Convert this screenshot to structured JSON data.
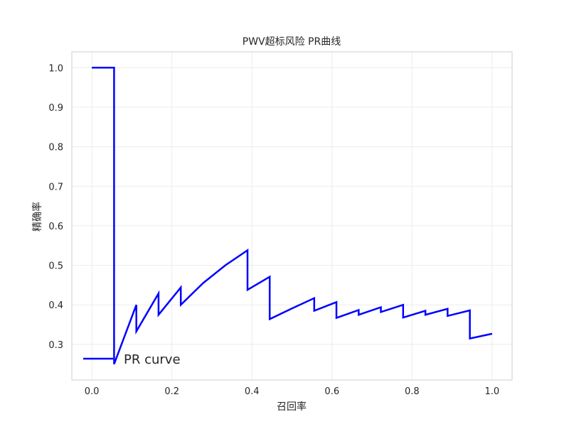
{
  "chart_data": {
    "type": "line",
    "title": "PWV超标风险 PR曲线",
    "xlabel": "召回率",
    "ylabel": "精确率",
    "xlim": [
      -0.05,
      1.05
    ],
    "ylim": [
      0.21,
      1.04
    ],
    "grid": true,
    "legend_position": "lower-left",
    "x_ticks": [
      0.0,
      0.2,
      0.4,
      0.6,
      0.8,
      1.0
    ],
    "x_tick_labels": [
      "0.0",
      "0.2",
      "0.4",
      "0.6",
      "0.8",
      "1.0"
    ],
    "y_ticks": [
      0.3,
      0.4,
      0.5,
      0.6,
      0.7,
      0.8,
      0.9,
      1.0
    ],
    "y_tick_labels": [
      "0.3",
      "0.4",
      "0.5",
      "0.6",
      "0.7",
      "0.8",
      "0.9",
      "1.0"
    ],
    "series": [
      {
        "name": "PR curve",
        "color": "#0000ff",
        "x": [
          0.0,
          0.0556,
          0.0556,
          0.1111,
          0.1111,
          0.1667,
          0.1667,
          0.2222,
          0.2222,
          0.2778,
          0.3333,
          0.3889,
          0.3889,
          0.4444,
          0.4444,
          0.5,
          0.5556,
          0.5556,
          0.6111,
          0.6111,
          0.6667,
          0.6667,
          0.7222,
          0.7222,
          0.7778,
          0.7778,
          0.8333,
          0.8333,
          0.8889,
          0.8889,
          0.9444,
          0.9444,
          1.0
        ],
        "y": [
          1.0,
          1.0,
          0.25,
          0.4,
          0.333,
          0.429,
          0.375,
          0.444,
          0.4,
          0.455,
          0.5,
          0.538,
          0.438,
          0.471,
          0.364,
          0.391,
          0.417,
          0.385,
          0.407,
          0.367,
          0.387,
          0.375,
          0.394,
          0.382,
          0.4,
          0.368,
          0.385,
          0.375,
          0.39,
          0.372,
          0.386,
          0.315,
          0.327
        ]
      }
    ]
  }
}
